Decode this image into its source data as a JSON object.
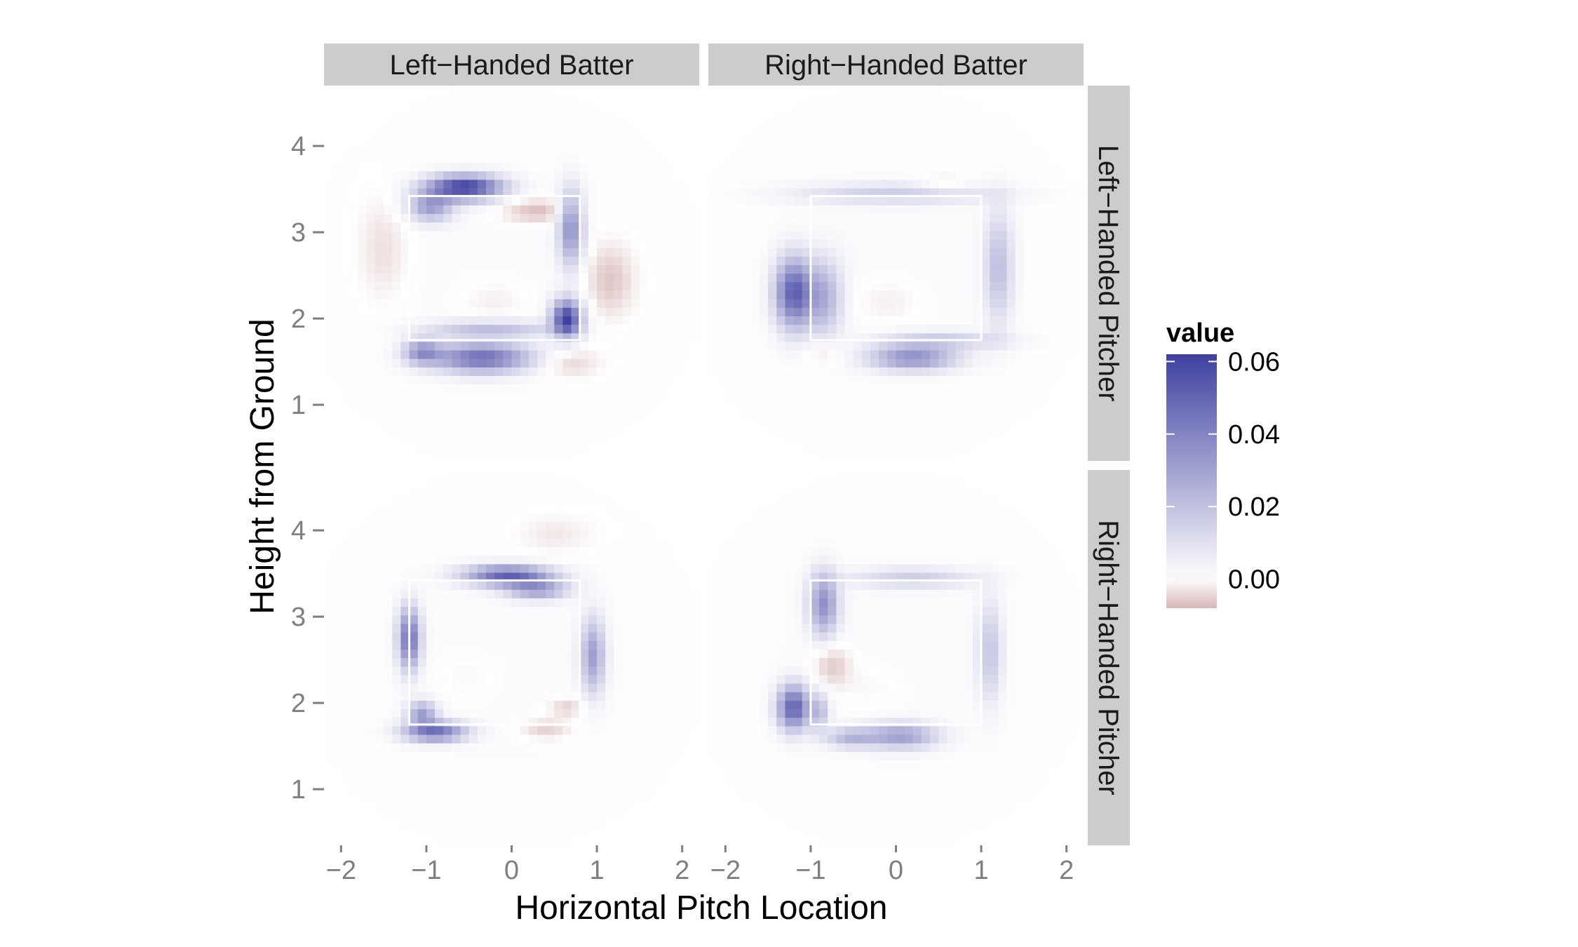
{
  "chart_data": {
    "type": "heatmap",
    "xlabel": "Horizontal Pitch Location",
    "ylabel": "Height from Ground",
    "xlim": [
      -2.2,
      2.2
    ],
    "ylim": [
      0.35,
      4.7
    ],
    "x_ticks": [
      -2,
      -1,
      0,
      1,
      2
    ],
    "x_tick_labels": [
      "−2",
      "−1",
      "0",
      "1",
      "2"
    ],
    "y_ticks": [
      1,
      2,
      3,
      4
    ],
    "y_tick_labels": [
      "1",
      "2",
      "3",
      "4"
    ],
    "grid": true,
    "column_facets": [
      "Left−Handed Batter",
      "Right−Handed Batter"
    ],
    "row_facets": [
      "Left−Handed Pitcher",
      "Right−Handed Pitcher"
    ],
    "legend": {
      "title": "value",
      "placement": "right",
      "range": [
        -0.008,
        0.062
      ],
      "ticks": [
        0.06,
        0.04,
        0.02,
        0.0
      ],
      "tick_labels": [
        "0.06",
        "0.04",
        "0.02",
        "0.00"
      ],
      "high_color": "#3f40a0",
      "mid_color": "#ffffff",
      "low_color": "#d7b6b6"
    },
    "strike_zone_color": "#ffffff",
    "panels": [
      {
        "row": "Left−Handed Pitcher",
        "column": "Left−Handed Batter",
        "strike_zone": {
          "x": [
            -1.2,
            0.8
          ],
          "y": [
            1.75,
            3.42
          ]
        },
        "blobs": [
          {
            "x": -0.55,
            "y": 3.52,
            "sx": 0.3,
            "sy": 0.1,
            "value": 0.062
          },
          {
            "x": -0.95,
            "y": 3.3,
            "sx": 0.18,
            "sy": 0.12,
            "value": 0.03
          },
          {
            "x": -0.35,
            "y": 1.55,
            "sx": 0.4,
            "sy": 0.12,
            "value": 0.045
          },
          {
            "x": -1.05,
            "y": 1.62,
            "sx": 0.15,
            "sy": 0.1,
            "value": 0.03
          },
          {
            "x": 0.65,
            "y": 2.0,
            "sx": 0.12,
            "sy": 0.15,
            "value": 0.06
          },
          {
            "x": 0.7,
            "y": 3.05,
            "sx": 0.1,
            "sy": 0.3,
            "value": 0.035
          },
          {
            "x": 0.3,
            "y": 3.25,
            "sx": 0.3,
            "sy": 0.1,
            "value": -0.008
          },
          {
            "x": 1.15,
            "y": 2.45,
            "sx": 0.2,
            "sy": 0.3,
            "value": -0.007
          },
          {
            "x": 0.65,
            "y": 1.5,
            "sx": 0.25,
            "sy": 0.12,
            "value": -0.006
          },
          {
            "x": -1.5,
            "y": 2.8,
            "sx": 0.2,
            "sy": 0.4,
            "value": -0.004
          },
          {
            "x": -0.2,
            "y": 2.2,
            "sx": 0.3,
            "sy": 0.2,
            "value": -0.003
          },
          {
            "x": -0.25,
            "y": 1.88,
            "sx": 0.5,
            "sy": 0.07,
            "value": 0.02
          }
        ]
      },
      {
        "row": "Left−Handed Pitcher",
        "column": "Right−Handed Batter",
        "strike_zone": {
          "x": [
            -1.0,
            1.0
          ],
          "y": [
            1.75,
            3.42
          ]
        },
        "blobs": [
          {
            "x": -1.2,
            "y": 2.3,
            "sx": 0.15,
            "sy": 0.28,
            "value": 0.05
          },
          {
            "x": -0.85,
            "y": 2.25,
            "sx": 0.15,
            "sy": 0.3,
            "value": 0.025
          },
          {
            "x": 0.2,
            "y": 1.55,
            "sx": 0.35,
            "sy": 0.1,
            "value": 0.035
          },
          {
            "x": 1.2,
            "y": 2.6,
            "sx": 0.12,
            "sy": 0.45,
            "value": 0.02
          },
          {
            "x": 0.0,
            "y": 3.45,
            "sx": 0.8,
            "sy": 0.08,
            "value": 0.015
          },
          {
            "x": 0.55,
            "y": 1.75,
            "sx": 0.5,
            "sy": 0.07,
            "value": 0.015
          },
          {
            "x": 0.55,
            "y": 3.55,
            "sx": 0.2,
            "sy": 0.08,
            "value": -0.005
          },
          {
            "x": -0.1,
            "y": 2.2,
            "sx": 0.3,
            "sy": 0.2,
            "value": -0.003
          },
          {
            "x": -0.85,
            "y": 1.6,
            "sx": 0.15,
            "sy": 0.1,
            "value": -0.005
          }
        ]
      },
      {
        "row": "Right−Handed Pitcher",
        "column": "Left−Handed Batter",
        "strike_zone": {
          "x": [
            -1.2,
            0.8
          ],
          "y": [
            1.75,
            3.42
          ]
        },
        "blobs": [
          {
            "x": -0.05,
            "y": 3.48,
            "sx": 0.35,
            "sy": 0.08,
            "value": 0.05
          },
          {
            "x": 0.3,
            "y": 3.32,
            "sx": 0.25,
            "sy": 0.08,
            "value": 0.03
          },
          {
            "x": -1.2,
            "y": 2.75,
            "sx": 0.09,
            "sy": 0.25,
            "value": 0.045
          },
          {
            "x": -0.9,
            "y": 1.67,
            "sx": 0.25,
            "sy": 0.08,
            "value": 0.045
          },
          {
            "x": -1.05,
            "y": 1.88,
            "sx": 0.12,
            "sy": 0.1,
            "value": 0.03
          },
          {
            "x": 0.95,
            "y": 2.55,
            "sx": 0.1,
            "sy": 0.3,
            "value": 0.03
          },
          {
            "x": 0.4,
            "y": 1.7,
            "sx": 0.2,
            "sy": 0.08,
            "value": -0.006
          },
          {
            "x": 0.65,
            "y": 1.95,
            "sx": 0.15,
            "sy": 0.08,
            "value": -0.006
          },
          {
            "x": 0.5,
            "y": 3.95,
            "sx": 0.3,
            "sy": 0.15,
            "value": -0.003
          },
          {
            "x": -0.5,
            "y": 2.3,
            "sx": 0.3,
            "sy": 0.2,
            "value": -0.002
          }
        ]
      },
      {
        "row": "Right−Handed Pitcher",
        "column": "Right−Handed Batter",
        "strike_zone": {
          "x": [
            -1.0,
            1.0
          ],
          "y": [
            1.75,
            3.42
          ]
        },
        "blobs": [
          {
            "x": -1.2,
            "y": 1.95,
            "sx": 0.13,
            "sy": 0.18,
            "value": 0.05
          },
          {
            "x": -0.85,
            "y": 3.15,
            "sx": 0.12,
            "sy": 0.25,
            "value": 0.035
          },
          {
            "x": 0.05,
            "y": 1.62,
            "sx": 0.3,
            "sy": 0.1,
            "value": 0.03
          },
          {
            "x": -0.55,
            "y": 1.6,
            "sx": 0.2,
            "sy": 0.08,
            "value": 0.02
          },
          {
            "x": -0.9,
            "y": 1.9,
            "sx": 0.08,
            "sy": 0.15,
            "value": 0.02
          },
          {
            "x": 1.1,
            "y": 2.6,
            "sx": 0.1,
            "sy": 0.4,
            "value": 0.018
          },
          {
            "x": 0.2,
            "y": 3.45,
            "sx": 0.5,
            "sy": 0.08,
            "value": 0.015
          },
          {
            "x": -0.75,
            "y": 2.45,
            "sx": 0.15,
            "sy": 0.18,
            "value": -0.007
          },
          {
            "x": -0.3,
            "y": 2.2,
            "sx": 0.3,
            "sy": 0.2,
            "value": -0.002
          }
        ]
      }
    ]
  }
}
